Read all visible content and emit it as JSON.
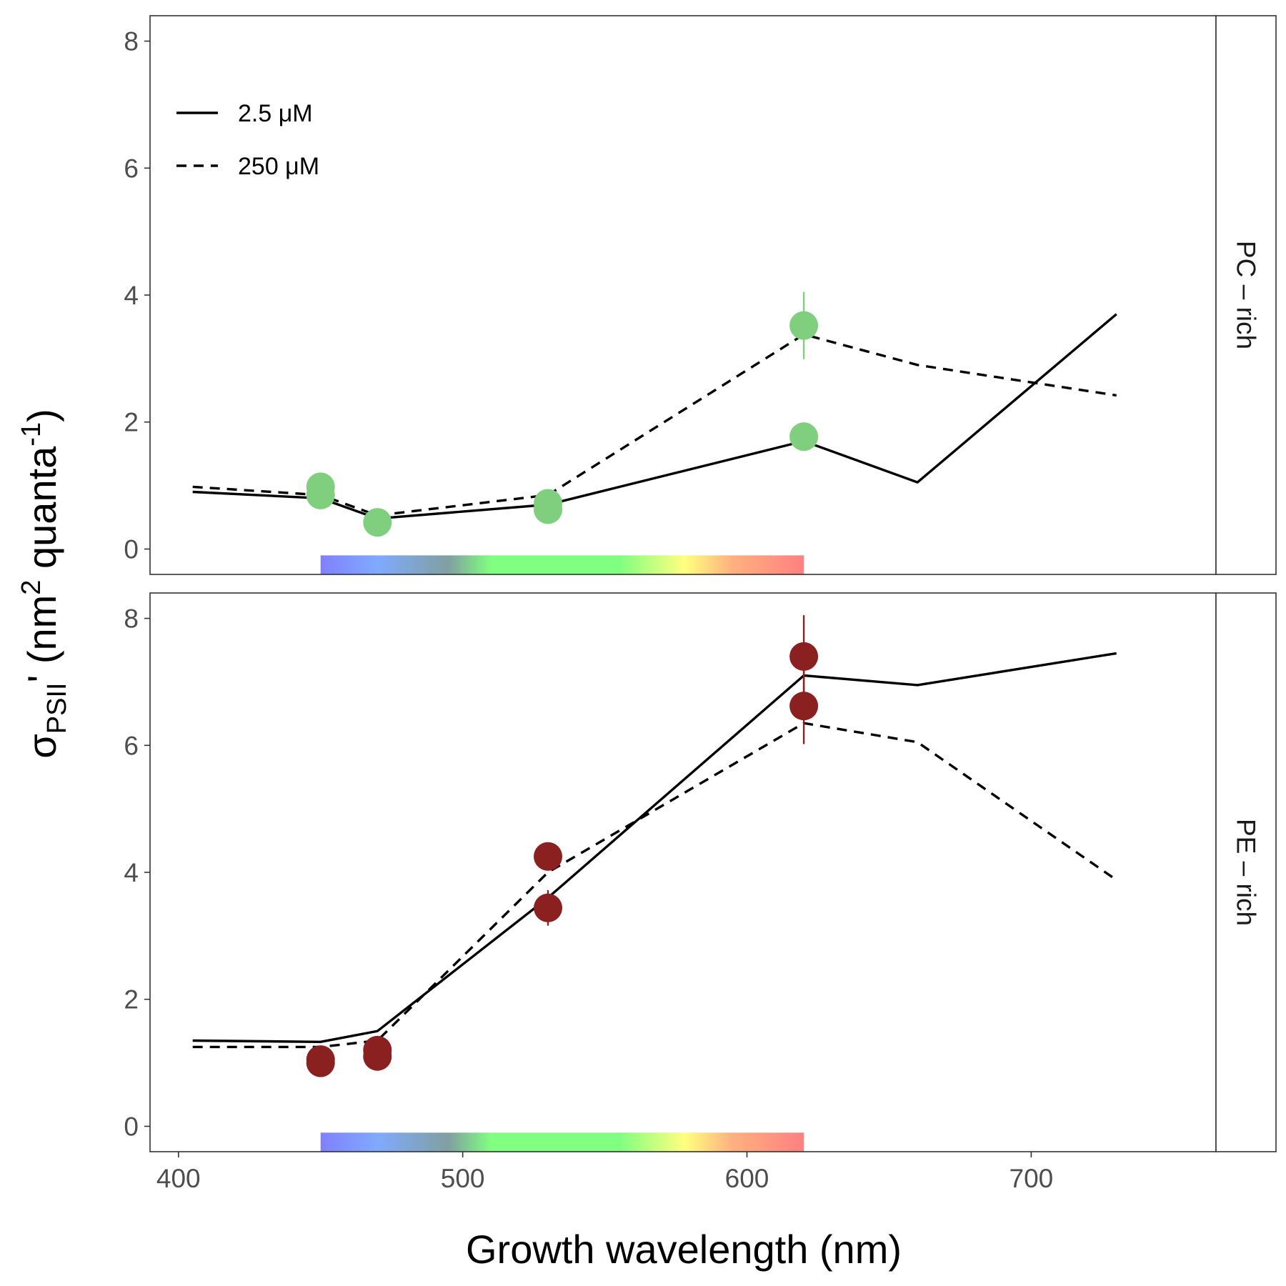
{
  "chart_data": {
    "type": "line",
    "xlabel": "Growth wavelength (nm)",
    "ylabel": {
      "sigma": "σ",
      "sub": "PSII",
      "prime": "'",
      "open": " (nm",
      "sup_unit": "2",
      "mid": " quanta",
      "sup_exp": "-1",
      "close": ")"
    },
    "xlim": [
      390,
      765
    ],
    "xticks": [
      400,
      500,
      600,
      700
    ],
    "ylim": [
      -0.4,
      8.4
    ],
    "yticks": [
      0,
      2,
      4,
      6,
      8
    ],
    "grid": false,
    "legend": {
      "placement": "top-left",
      "items": [
        {
          "label": " 2.5 μM",
          "dash": "solid"
        },
        {
          "label": "250 μM",
          "dash": "dashed"
        }
      ]
    },
    "spectrum_bar": {
      "x_range": [
        450,
        620
      ],
      "stops": [
        {
          "x": 450,
          "color": "#8080ff"
        },
        {
          "x": 470,
          "color": "#80aaff"
        },
        {
          "x": 495,
          "color": "#80a0a0"
        },
        {
          "x": 510,
          "color": "#80ff80"
        },
        {
          "x": 555,
          "color": "#80ff80"
        },
        {
          "x": 578,
          "color": "#ffff80"
        },
        {
          "x": 595,
          "color": "#ffb080"
        },
        {
          "x": 620,
          "color": "#ff8080"
        }
      ]
    },
    "panels": [
      {
        "strip": "PC – rich",
        "point_color": "#7fcf7f",
        "lines": [
          {
            "name": "2.5 μM",
            "dash": "solid",
            "x": [
              405,
              450,
              470,
              530,
              620,
              660,
              730
            ],
            "y": [
              0.9,
              0.8,
              0.48,
              0.7,
              1.7,
              1.05,
              3.7
            ]
          },
          {
            "name": "250 μM",
            "dash": "dashed",
            "x": [
              405,
              450,
              470,
              530,
              620,
              660,
              730
            ],
            "y": [
              0.98,
              0.85,
              0.53,
              0.85,
              3.38,
              2.9,
              2.42
            ]
          }
        ],
        "points": [
          {
            "x": 450,
            "y": 0.85,
            "err": 0.08
          },
          {
            "x": 450,
            "y": 0.98,
            "err": 0.06
          },
          {
            "x": 470,
            "y": 0.42,
            "err": 0.05
          },
          {
            "x": 530,
            "y": 0.62,
            "err": 0.06
          },
          {
            "x": 530,
            "y": 0.72,
            "err": 0.05
          },
          {
            "x": 620,
            "y": 1.77,
            "err": 0.1
          },
          {
            "x": 620,
            "y": 3.52,
            "err": 0.53
          }
        ]
      },
      {
        "strip": "PE – rich",
        "point_color": "#8b2020",
        "lines": [
          {
            "name": "2.5 μM",
            "dash": "solid",
            "x": [
              405,
              450,
              470,
              530,
              620,
              660,
              730
            ],
            "y": [
              1.35,
              1.33,
              1.5,
              3.6,
              7.1,
              6.95,
              7.45
            ]
          },
          {
            "name": "250 μM",
            "dash": "dashed",
            "x": [
              405,
              450,
              470,
              530,
              620,
              660,
              730
            ],
            "y": [
              1.25,
              1.25,
              1.35,
              4.0,
              6.35,
              6.05,
              3.88
            ]
          }
        ],
        "points": [
          {
            "x": 450,
            "y": 1.0,
            "err": 0.08
          },
          {
            "x": 450,
            "y": 1.05,
            "err": 0.06
          },
          {
            "x": 470,
            "y": 1.1,
            "err": 0.1
          },
          {
            "x": 470,
            "y": 1.2,
            "err": 0.08
          },
          {
            "x": 530,
            "y": 3.44,
            "err": 0.28
          },
          {
            "x": 530,
            "y": 4.25,
            "err": 0.1
          },
          {
            "x": 620,
            "y": 6.62,
            "err": 0.6
          },
          {
            "x": 620,
            "y": 7.4,
            "err": 0.65
          }
        ]
      }
    ]
  }
}
